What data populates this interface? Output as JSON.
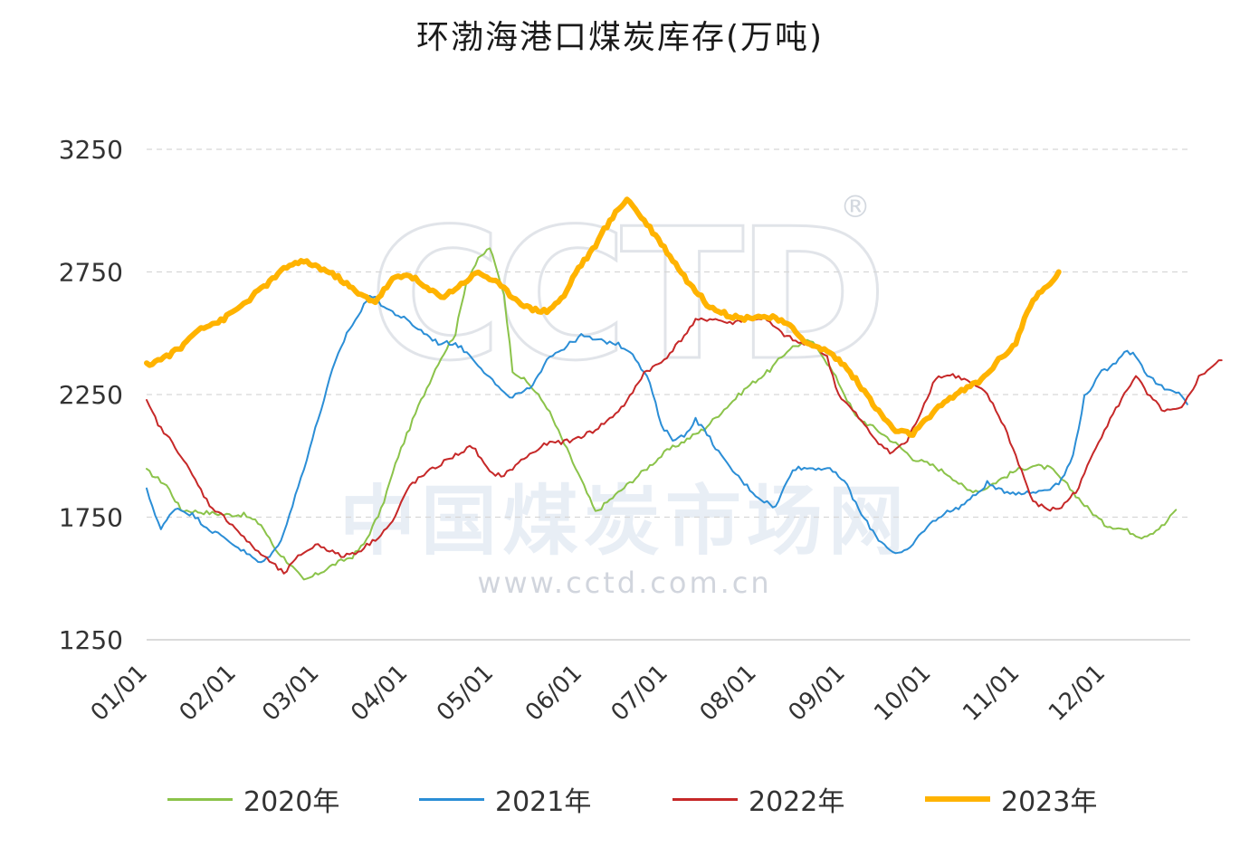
{
  "title": "环渤海港口煤炭库存(万吨)",
  "watermark": {
    "logo": "CCTD",
    "registered": "®",
    "name": "中国煤炭市场网",
    "url": "www.cctd.com.cn"
  },
  "chart_data": {
    "type": "line",
    "title": "环渤海港口煤炭库存(万吨)",
    "xlabel": "",
    "ylabel": "",
    "x_tick_labels": [
      "01/01",
      "02/01",
      "03/01",
      "04/01",
      "05/01",
      "06/01",
      "07/01",
      "08/01",
      "09/01",
      "10/01",
      "11/01",
      "12/01"
    ],
    "y_ticks": [
      1250,
      1750,
      2250,
      2750,
      3250
    ],
    "ylim": [
      1250,
      3250
    ],
    "grid": "horizontal dashed",
    "legend_position": "bottom",
    "x_unit": "day of year (Jan 1 = 0)",
    "series": [
      {
        "name": "2020年",
        "color": "#8bc34a",
        "width": 2,
        "points": [
          [
            0,
            1940
          ],
          [
            7,
            1880
          ],
          [
            12,
            1780
          ],
          [
            20,
            1770
          ],
          [
            28,
            1760
          ],
          [
            34,
            1760
          ],
          [
            40,
            1720
          ],
          [
            45,
            1620
          ],
          [
            50,
            1560
          ],
          [
            55,
            1490
          ],
          [
            60,
            1520
          ],
          [
            66,
            1560
          ],
          [
            72,
            1590
          ],
          [
            76,
            1640
          ],
          [
            82,
            1780
          ],
          [
            88,
            2000
          ],
          [
            95,
            2200
          ],
          [
            102,
            2380
          ],
          [
            108,
            2500
          ],
          [
            112,
            2720
          ],
          [
            116,
            2800
          ],
          [
            120,
            2850
          ],
          [
            125,
            2660
          ],
          [
            128,
            2350
          ],
          [
            134,
            2290
          ],
          [
            140,
            2200
          ],
          [
            146,
            2050
          ],
          [
            152,
            1900
          ],
          [
            157,
            1770
          ],
          [
            163,
            1830
          ],
          [
            170,
            1900
          ],
          [
            176,
            1960
          ],
          [
            182,
            2020
          ],
          [
            188,
            2060
          ],
          [
            195,
            2110
          ],
          [
            202,
            2190
          ],
          [
            210,
            2280
          ],
          [
            218,
            2350
          ],
          [
            225,
            2440
          ],
          [
            232,
            2470
          ],
          [
            236,
            2420
          ],
          [
            242,
            2300
          ],
          [
            248,
            2160
          ],
          [
            255,
            2110
          ],
          [
            262,
            2050
          ],
          [
            268,
            1990
          ],
          [
            275,
            1960
          ],
          [
            281,
            1920
          ],
          [
            287,
            1860
          ],
          [
            292,
            1860
          ],
          [
            298,
            1900
          ],
          [
            304,
            1940
          ],
          [
            310,
            1960
          ],
          [
            316,
            1950
          ],
          [
            322,
            1880
          ],
          [
            328,
            1800
          ],
          [
            335,
            1720
          ],
          [
            342,
            1700
          ],
          [
            348,
            1670
          ],
          [
            352,
            1690
          ],
          [
            356,
            1720
          ],
          [
            360,
            1780
          ]
        ]
      },
      {
        "name": "2021年",
        "color": "#2b8ed6",
        "width": 2,
        "points": [
          [
            0,
            1860
          ],
          [
            5,
            1700
          ],
          [
            10,
            1790
          ],
          [
            16,
            1760
          ],
          [
            22,
            1700
          ],
          [
            28,
            1660
          ],
          [
            34,
            1610
          ],
          [
            40,
            1560
          ],
          [
            46,
            1630
          ],
          [
            50,
            1760
          ],
          [
            55,
            1950
          ],
          [
            60,
            2150
          ],
          [
            65,
            2350
          ],
          [
            70,
            2500
          ],
          [
            75,
            2590
          ],
          [
            78,
            2660
          ],
          [
            84,
            2600
          ],
          [
            90,
            2560
          ],
          [
            96,
            2510
          ],
          [
            102,
            2460
          ],
          [
            108,
            2460
          ],
          [
            114,
            2400
          ],
          [
            120,
            2320
          ],
          [
            126,
            2240
          ],
          [
            130,
            2250
          ],
          [
            135,
            2280
          ],
          [
            140,
            2400
          ],
          [
            146,
            2440
          ],
          [
            152,
            2490
          ],
          [
            158,
            2470
          ],
          [
            164,
            2460
          ],
          [
            170,
            2420
          ],
          [
            176,
            2300
          ],
          [
            180,
            2120
          ],
          [
            184,
            2070
          ],
          [
            188,
            2080
          ],
          [
            192,
            2150
          ],
          [
            196,
            2090
          ],
          [
            202,
            1980
          ],
          [
            208,
            1900
          ],
          [
            214,
            1830
          ],
          [
            220,
            1790
          ],
          [
            226,
            1950
          ],
          [
            232,
            1950
          ],
          [
            238,
            1950
          ],
          [
            244,
            1900
          ],
          [
            250,
            1760
          ],
          [
            256,
            1660
          ],
          [
            262,
            1600
          ],
          [
            266,
            1610
          ],
          [
            272,
            1700
          ],
          [
            278,
            1760
          ],
          [
            284,
            1790
          ],
          [
            290,
            1840
          ],
          [
            294,
            1890
          ],
          [
            298,
            1860
          ],
          [
            304,
            1850
          ],
          [
            310,
            1850
          ],
          [
            316,
            1870
          ],
          [
            320,
            1900
          ],
          [
            324,
            2000
          ],
          [
            328,
            2240
          ],
          [
            334,
            2340
          ],
          [
            338,
            2370
          ],
          [
            342,
            2430
          ],
          [
            346,
            2410
          ],
          [
            350,
            2330
          ],
          [
            356,
            2270
          ],
          [
            362,
            2250
          ],
          [
            364,
            2210
          ]
        ]
      },
      {
        "name": "2022年",
        "color": "#c62828",
        "width": 2,
        "points": [
          [
            0,
            2220
          ],
          [
            5,
            2110
          ],
          [
            10,
            2040
          ],
          [
            15,
            1940
          ],
          [
            22,
            1800
          ],
          [
            30,
            1720
          ],
          [
            36,
            1640
          ],
          [
            42,
            1580
          ],
          [
            48,
            1520
          ],
          [
            54,
            1600
          ],
          [
            60,
            1640
          ],
          [
            68,
            1590
          ],
          [
            74,
            1610
          ],
          [
            80,
            1660
          ],
          [
            86,
            1730
          ],
          [
            92,
            1880
          ],
          [
            98,
            1930
          ],
          [
            106,
            1990
          ],
          [
            114,
            2040
          ],
          [
            120,
            1930
          ],
          [
            125,
            1920
          ],
          [
            132,
            1990
          ],
          [
            140,
            2050
          ],
          [
            148,
            2060
          ],
          [
            156,
            2100
          ],
          [
            162,
            2150
          ],
          [
            168,
            2220
          ],
          [
            174,
            2340
          ],
          [
            180,
            2380
          ],
          [
            186,
            2460
          ],
          [
            192,
            2550
          ],
          [
            198,
            2560
          ],
          [
            204,
            2540
          ],
          [
            210,
            2560
          ],
          [
            216,
            2560
          ],
          [
            222,
            2500
          ],
          [
            228,
            2460
          ],
          [
            234,
            2450
          ],
          [
            238,
            2400
          ],
          [
            242,
            2250
          ],
          [
            248,
            2170
          ],
          [
            254,
            2080
          ],
          [
            260,
            2010
          ],
          [
            266,
            2060
          ],
          [
            270,
            2160
          ],
          [
            276,
            2320
          ],
          [
            282,
            2330
          ],
          [
            288,
            2300
          ],
          [
            294,
            2250
          ],
          [
            300,
            2120
          ],
          [
            306,
            1940
          ],
          [
            310,
            1810
          ],
          [
            316,
            1780
          ],
          [
            320,
            1790
          ],
          [
            326,
            1870
          ],
          [
            332,
            2040
          ],
          [
            338,
            2170
          ],
          [
            342,
            2250
          ],
          [
            346,
            2330
          ],
          [
            350,
            2250
          ],
          [
            356,
            2180
          ],
          [
            362,
            2190
          ],
          [
            368,
            2320
          ],
          [
            372,
            2360
          ],
          [
            376,
            2390
          ]
        ]
      },
      {
        "name": "2023年",
        "color": "#ffb300",
        "width": 6,
        "points": [
          [
            0,
            2370
          ],
          [
            6,
            2400
          ],
          [
            12,
            2440
          ],
          [
            18,
            2520
          ],
          [
            26,
            2550
          ],
          [
            34,
            2620
          ],
          [
            42,
            2700
          ],
          [
            50,
            2780
          ],
          [
            56,
            2790
          ],
          [
            62,
            2760
          ],
          [
            68,
            2720
          ],
          [
            74,
            2660
          ],
          [
            80,
            2630
          ],
          [
            86,
            2720
          ],
          [
            92,
            2740
          ],
          [
            98,
            2680
          ],
          [
            104,
            2650
          ],
          [
            110,
            2700
          ],
          [
            116,
            2750
          ],
          [
            122,
            2710
          ],
          [
            128,
            2650
          ],
          [
            134,
            2600
          ],
          [
            140,
            2590
          ],
          [
            146,
            2650
          ],
          [
            150,
            2750
          ],
          [
            156,
            2840
          ],
          [
            160,
            2920
          ],
          [
            164,
            2990
          ],
          [
            168,
            3050
          ],
          [
            172,
            2990
          ],
          [
            178,
            2900
          ],
          [
            184,
            2800
          ],
          [
            190,
            2700
          ],
          [
            196,
            2620
          ],
          [
            202,
            2580
          ],
          [
            208,
            2560
          ],
          [
            214,
            2570
          ],
          [
            220,
            2560
          ],
          [
            226,
            2520
          ],
          [
            232,
            2450
          ],
          [
            238,
            2430
          ],
          [
            244,
            2370
          ],
          [
            250,
            2280
          ],
          [
            256,
            2180
          ],
          [
            262,
            2100
          ],
          [
            268,
            2090
          ],
          [
            274,
            2160
          ],
          [
            280,
            2230
          ],
          [
            286,
            2270
          ],
          [
            292,
            2310
          ],
          [
            298,
            2390
          ],
          [
            304,
            2460
          ],
          [
            308,
            2590
          ],
          [
            312,
            2660
          ],
          [
            316,
            2700
          ],
          [
            319,
            2750
          ]
        ]
      }
    ]
  }
}
